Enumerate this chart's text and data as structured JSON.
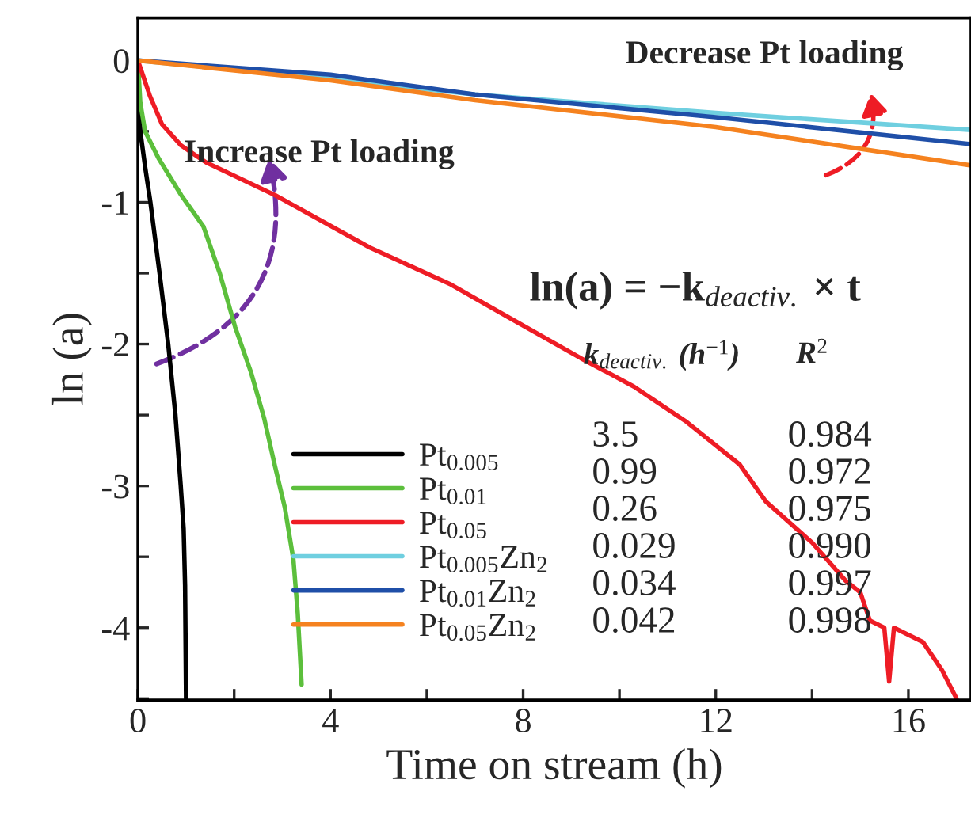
{
  "chart_data": {
    "type": "line",
    "xlabel": "Time on stream (h)",
    "ylabel": "ln (a)",
    "xlim": [
      0,
      17.3
    ],
    "ylim": [
      -4.51,
      0.3
    ],
    "xticks": [
      0,
      {
        "value": 2,
        "label": null
      },
      4,
      {
        "value": 6,
        "label": null
      },
      8,
      {
        "value": 10,
        "label": null
      },
      12,
      {
        "value": 14,
        "label": null
      },
      16
    ],
    "yticks": [
      {
        "value": -4.5,
        "label": null
      },
      -4,
      {
        "value": -3.5,
        "label": null
      },
      -3,
      {
        "value": -2.5,
        "label": null
      },
      -2,
      {
        "value": -1.5,
        "label": null
      },
      -1,
      {
        "value": -0.5,
        "label": null
      },
      0
    ],
    "grid": false,
    "legend": "bottom",
    "line_style": "solid",
    "marker": "none",
    "series": [
      {
        "name": "Pt$_{0.005}$",
        "color": "#000000",
        "x": [
          0,
          0.05,
          0.15,
          0.26,
          0.45,
          0.63,
          0.78,
          0.89,
          0.95,
          0.98,
          1.0
        ],
        "values": [
          0,
          -0.5,
          -0.75,
          -1,
          -1.5,
          -2,
          -2.5,
          -3,
          -3.3,
          -3.7,
          -4.5
        ]
      },
      {
        "name": "Pt$_{0.01}$",
        "color": "#5cbf3c",
        "x": [
          0,
          0.05,
          0.15,
          0.43,
          0.9,
          1.36,
          1.7,
          2.02,
          2.35,
          2.62,
          2.84,
          3.05,
          3.23,
          3.32,
          3.4
        ],
        "values": [
          0,
          -0.3,
          -0.5,
          -0.69,
          -0.95,
          -1.17,
          -1.5,
          -1.88,
          -2.2,
          -2.52,
          -2.85,
          -3.15,
          -3.52,
          -3.9,
          -4.4
        ]
      },
      {
        "name": "Pt$_{0.05}$",
        "color": "#ee1c25",
        "x": [
          0,
          0.1,
          0.25,
          0.5,
          0.9,
          1.42,
          2.85,
          4.82,
          6.5,
          7.69,
          9.2,
          10.3,
          11.4,
          12.5,
          13.04,
          14.0,
          14.7,
          15.0,
          15.2,
          15.5,
          15.6,
          15.7,
          16.3,
          16.7,
          17.0
        ],
        "values": [
          0,
          -0.1,
          -0.25,
          -0.45,
          -0.6,
          -0.72,
          -0.95,
          -1.32,
          -1.58,
          -1.81,
          -2.1,
          -2.3,
          -2.55,
          -2.85,
          -3.11,
          -3.4,
          -3.67,
          -3.75,
          -3.95,
          -4.0,
          -4.38,
          -4.0,
          -4.1,
          -4.3,
          -4.5
        ]
      },
      {
        "name": "Pt$_{0.005}$Zn$_{2}$",
        "color": "#6fcfe0",
        "x": [
          0,
          4,
          7,
          12,
          17.3
        ],
        "values": [
          0,
          -0.13,
          -0.24,
          -0.37,
          -0.49
        ]
      },
      {
        "name": "Pt$_{0.01}$Zn$_{2}$",
        "color": "#1f4fa8",
        "x": [
          0,
          4,
          7,
          12,
          17.3
        ],
        "values": [
          0,
          -0.1,
          -0.24,
          -0.4,
          -0.59
        ]
      },
      {
        "name": "Pt$_{0.05}$Zn$_{2}$",
        "color": "#f5821f",
        "x": [
          0,
          4,
          7,
          12,
          17.3
        ],
        "values": [
          0,
          -0.14,
          -0.28,
          -0.47,
          -0.74
        ]
      }
    ],
    "annotations": [
      "Increase Pt loading",
      "Decrease Pt loading",
      "ln(a) = −k$_{deactiv.}$ × t",
      "k$_{deactiv.}$ (h$^{−1}$)",
      "R$^{2}$",
      "3.5",
      "0.984",
      "0.99",
      "0.972",
      "0.26",
      "0.975",
      "0.029",
      "0.990",
      "0.034",
      "0.997",
      "0.042",
      "0.998"
    ]
  }
}
